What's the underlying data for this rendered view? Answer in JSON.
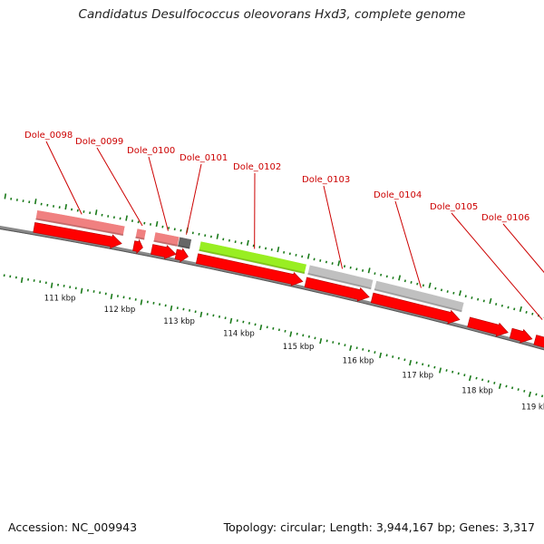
{
  "title": "Candidatus Desulfococcus oleovorans Hxd3, complete genome",
  "footer": {
    "accession": "Accession: NC_009943",
    "summary": "Topology: circular; Length: 3,944,167 bp; Genes: 3,317"
  },
  "colors": {
    "forward_arrow": "#ff0000",
    "pink_feature": "#f08080",
    "green_feature": "#99ee22",
    "grey_feature": "#c0c0c0",
    "dark_grey_feature": "#666666",
    "tick": "#1a7a1a",
    "backbone": "#888888",
    "label": "#cc0000"
  },
  "axis": {
    "kbp_labels": [
      {
        "kbp": 111,
        "label": "111 kbp"
      },
      {
        "kbp": 112,
        "label": "112 kbp"
      },
      {
        "kbp": 113,
        "label": "113 kbp"
      },
      {
        "kbp": 114,
        "label": "114 kbp"
      },
      {
        "kbp": 115,
        "label": "115 kbp"
      },
      {
        "kbp": 116,
        "label": "116 kbp"
      },
      {
        "kbp": 117,
        "label": "117 kbp"
      },
      {
        "kbp": 118,
        "label": "118 kbp"
      },
      {
        "kbp": 119,
        "label": "119 kbp"
      }
    ]
  },
  "genes": [
    {
      "label": "Dole_0098",
      "start_kbp": 110.55,
      "end_kbp": 112.0,
      "kind": "pink"
    },
    {
      "label": "Dole_0099",
      "start_kbp": 112.2,
      "end_kbp": 112.35,
      "kind": "pink"
    },
    {
      "label": "Dole_0100",
      "start_kbp": 112.5,
      "end_kbp": 112.9,
      "kind": "pink"
    },
    {
      "label": "Dole_0101",
      "start_kbp": 112.9,
      "end_kbp": 113.1,
      "kind": "darkgrey"
    },
    {
      "label": "Dole_0102",
      "start_kbp": 113.25,
      "end_kbp": 115.0,
      "kind": "green"
    },
    {
      "label": "Dole_0103",
      "start_kbp": 115.05,
      "end_kbp": 116.1,
      "kind": "grey"
    },
    {
      "label": "Dole_0104",
      "start_kbp": 116.15,
      "end_kbp": 117.6,
      "kind": "grey"
    },
    {
      "label": "Dole_0105",
      "start_kbp": 118.55,
      "end_kbp": 119.2,
      "kind": "none"
    },
    {
      "label": "Dole_0106",
      "start_kbp": 119.35,
      "end_kbp": 120.2,
      "kind": "pink"
    }
  ],
  "arrows": [
    {
      "start_kbp": 110.55,
      "end_kbp": 112.0
    },
    {
      "start_kbp": 112.2,
      "end_kbp": 112.35
    },
    {
      "start_kbp": 112.5,
      "end_kbp": 112.9
    },
    {
      "start_kbp": 112.9,
      "end_kbp": 113.1
    },
    {
      "start_kbp": 113.25,
      "end_kbp": 115.0
    },
    {
      "start_kbp": 115.05,
      "end_kbp": 116.1
    },
    {
      "start_kbp": 116.15,
      "end_kbp": 117.6
    },
    {
      "start_kbp": 117.75,
      "end_kbp": 118.4
    },
    {
      "start_kbp": 118.45,
      "end_kbp": 118.8
    },
    {
      "start_kbp": 118.85,
      "end_kbp": 120.2
    }
  ]
}
